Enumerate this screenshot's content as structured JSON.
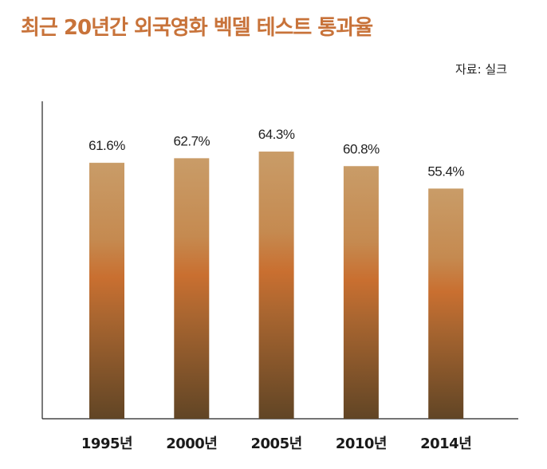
{
  "chart_data": {
    "type": "bar",
    "title": "최근 20년간 외국영화 벡델 테스트 통과율",
    "source": "자료: 실크",
    "categories": [
      "1995년",
      "2000년",
      "2005년",
      "2010년",
      "2014년"
    ],
    "values": [
      61.6,
      62.7,
      64.3,
      60.8,
      55.4
    ],
    "value_labels": [
      "61.6%",
      "62.7%",
      "64.3%",
      "60.8%",
      "55.4%"
    ],
    "xlabel": "",
    "ylabel": "",
    "ylim": [
      0,
      76.4
    ],
    "grid": false,
    "colors": {
      "title": "#c8733a",
      "bar_top": "#c99c68",
      "bar_mid": "#c96f30",
      "bar_bottom": "#614525",
      "axis": "#222222"
    }
  }
}
